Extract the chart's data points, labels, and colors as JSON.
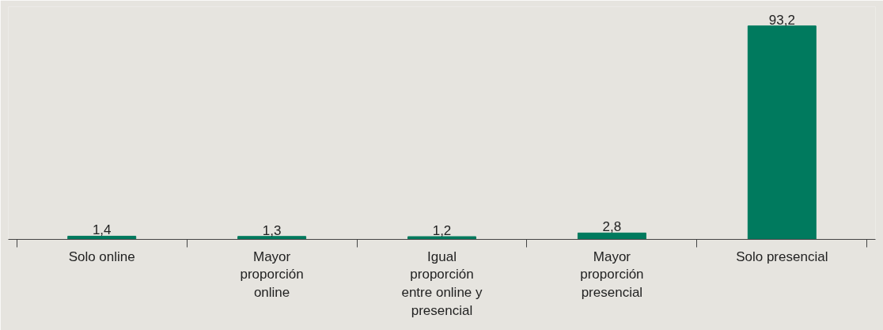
{
  "chart_data": {
    "type": "bar",
    "categories": [
      "Solo online",
      "Mayor proporción online",
      "Igual proporción entre online y presencial",
      "Mayor proporción presencial",
      "Solo presencial"
    ],
    "values": [
      1.4,
      1.3,
      1.2,
      2.8,
      93.2
    ],
    "value_labels": [
      "1,4",
      "1,3",
      "1,2",
      "2,8",
      "93,2"
    ],
    "color": "#007a5e"
  }
}
